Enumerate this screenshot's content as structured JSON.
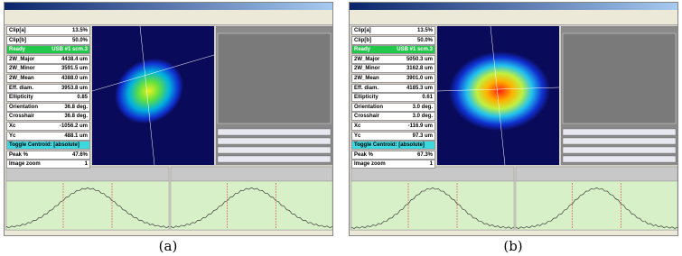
{
  "panels": [
    {
      "caption": "(a)",
      "rows": [
        {
          "label": "Clip[a]",
          "value": "13.5%"
        },
        {
          "label": "Clip[b]",
          "value": "50.0%"
        },
        {
          "label": "Ready",
          "value": "USB #1 scm.3"
        },
        {
          "label": "2W_Major",
          "value": "4438.4 um"
        },
        {
          "label": "2W_Minor",
          "value": "3591.5 um"
        },
        {
          "label": "2W_Mean",
          "value": "4388.0 um"
        },
        {
          "label": "Eff. diam.",
          "value": "3953.8 um"
        },
        {
          "label": "Ellipticity",
          "value": "0.85"
        },
        {
          "label": "Orientation",
          "value": "36.8 deg."
        },
        {
          "label": "Crosshair",
          "value": "36.8 deg."
        },
        {
          "label": "Xc",
          "value": "-1056.2 um"
        },
        {
          "label": "Yc",
          "value": "488.1 um"
        },
        {
          "label": "Toggle Centroid: [absolute]"
        },
        {
          "label": "Peak %",
          "value": "47.6%"
        },
        {
          "label": "Image zoom",
          "value": "1"
        }
      ]
    },
    {
      "caption": "(b)",
      "rows": [
        {
          "label": "Clip[a]",
          "value": "13.5%"
        },
        {
          "label": "Clip[b]",
          "value": "50.0%"
        },
        {
          "label": "Ready",
          "value": "USB #1 scm.3"
        },
        {
          "label": "2W_Major",
          "value": "5050.3 um"
        },
        {
          "label": "2W_Minor",
          "value": "3162.8 um"
        },
        {
          "label": "2W_Mean",
          "value": "3901.0 um"
        },
        {
          "label": "Eff. diam.",
          "value": "4185.3 um"
        },
        {
          "label": "Ellipticity",
          "value": "0.61"
        },
        {
          "label": "Orientation",
          "value": "3.0 deg."
        },
        {
          "label": "Crosshair",
          "value": "3.0 deg."
        },
        {
          "label": "Xc",
          "value": "-116.9 um"
        },
        {
          "label": "Yc",
          "value": "97.3 um"
        },
        {
          "label": "Toggle Centroid: [absolute]"
        },
        {
          "label": "Peak %",
          "value": "67.3%"
        },
        {
          "label": "Image zoom",
          "value": "1"
        }
      ]
    }
  ]
}
